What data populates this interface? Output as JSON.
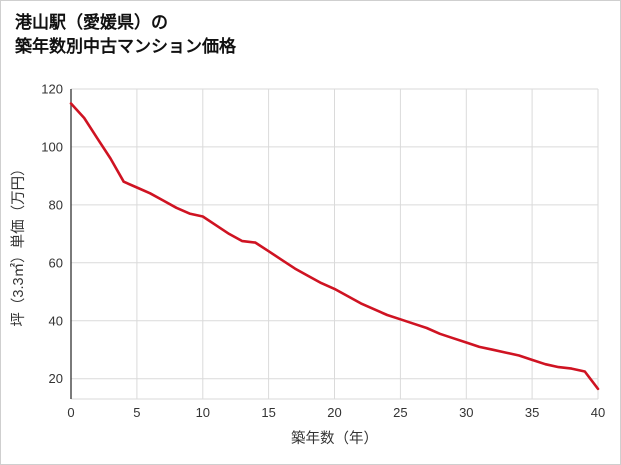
{
  "header": {
    "title_line1": "港山駅（愛媛県）の",
    "title_line2": "築年数別中古マンション価格"
  },
  "chart_data": {
    "type": "line",
    "title": "港山駅（愛媛県）の築年数別中古マンション価格",
    "xlabel": "築年数（年）",
    "ylabel": "坪（3.3㎡）単価（万円）",
    "x": [
      0,
      1,
      2,
      3,
      4,
      5,
      6,
      7,
      8,
      9,
      10,
      11,
      12,
      13,
      14,
      15,
      16,
      17,
      18,
      19,
      20,
      21,
      22,
      23,
      24,
      25,
      26,
      27,
      28,
      29,
      30,
      31,
      32,
      33,
      34,
      35,
      36,
      37,
      38,
      39,
      40
    ],
    "values": [
      115,
      110,
      103,
      96,
      88,
      86,
      84,
      81.5,
      79,
      77,
      76,
      73,
      70,
      67.5,
      67,
      64,
      61,
      58,
      55.5,
      53,
      51,
      48.5,
      46,
      44,
      42,
      40.5,
      39,
      37.5,
      35.5,
      34,
      32.5,
      31,
      30,
      29,
      28,
      26.5,
      25,
      24,
      23.5,
      22.5,
      16.5
    ],
    "xlim": [
      0,
      40
    ],
    "ylim": [
      13,
      120
    ],
    "xticks": [
      0,
      5,
      10,
      15,
      20,
      25,
      30,
      35,
      40
    ],
    "yticks": [
      20,
      40,
      60,
      80,
      100,
      120
    ],
    "line_color": "#cf1322",
    "grid_color": "#dadada",
    "axis_color": "#333333",
    "tick_color": "#333333",
    "grid": true,
    "legend": "none"
  }
}
